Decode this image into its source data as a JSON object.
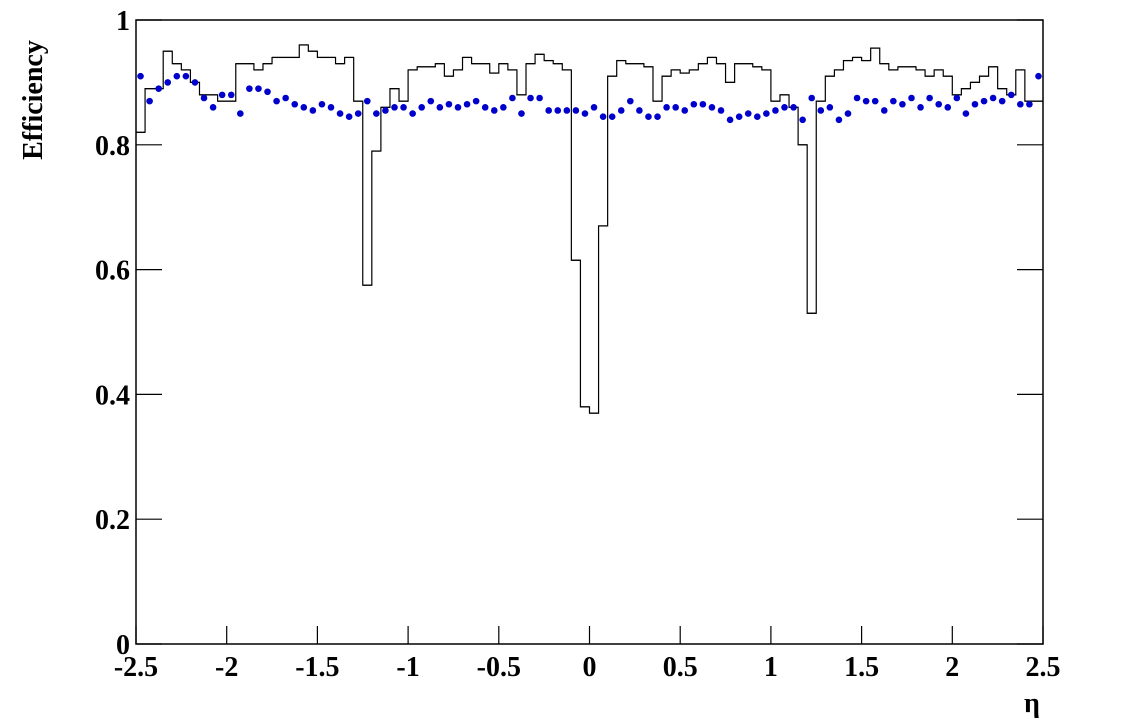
{
  "chart_data": {
    "type": "histogram",
    "xlabel": "η",
    "ylabel": "Efficiency",
    "bins": [
      -2.5,
      -2.45,
      -2.4,
      -2.35,
      -2.3,
      -2.25,
      -2.2,
      -2.15,
      -2.1,
      -2.05,
      -2,
      -1.95,
      -1.9,
      -1.85,
      -1.8,
      -1.75,
      -1.7,
      -1.65,
      -1.6,
      -1.55,
      -1.5,
      -1.45,
      -1.4,
      -1.35,
      -1.3,
      -1.25,
      -1.2,
      -1.15,
      -1.1,
      -1.05,
      -1,
      -0.95,
      -0.9,
      -0.85,
      -0.8,
      -0.75,
      -0.7,
      -0.65,
      -0.6,
      -0.55,
      -0.5,
      -0.45,
      -0.4,
      -0.35,
      -0.3,
      -0.25,
      -0.2,
      -0.15,
      -0.1,
      -0.05,
      0,
      0.05,
      0.1,
      0.15,
      0.2,
      0.25,
      0.3,
      0.35,
      0.4,
      0.45,
      0.5,
      0.55,
      0.6,
      0.65,
      0.7,
      0.75,
      0.8,
      0.85,
      0.9,
      0.95,
      1,
      1.05,
      1.1,
      1.15,
      1.2,
      1.25,
      1.3,
      1.35,
      1.4,
      1.45,
      1.5,
      1.55,
      1.6,
      1.65,
      1.7,
      1.75,
      1.8,
      1.85,
      1.9,
      1.95,
      2,
      2.05,
      2.1,
      2.15,
      2.2,
      2.25,
      2.3,
      2.35,
      2.4,
      2.45,
      2.5
    ],
    "series": [
      {
        "style": "step",
        "color": "#000000",
        "values": [
          0.82,
          0.89,
          0.89,
          0.95,
          0.93,
          0.92,
          0.9,
          0.88,
          0.88,
          0.87,
          0.87,
          0.93,
          0.93,
          0.92,
          0.93,
          0.94,
          0.94,
          0.94,
          0.96,
          0.95,
          0.94,
          0.94,
          0.93,
          0.94,
          0.87,
          0.575,
          0.79,
          0.86,
          0.89,
          0.87,
          0.92,
          0.925,
          0.925,
          0.93,
          0.91,
          0.92,
          0.94,
          0.93,
          0.93,
          0.915,
          0.93,
          0.92,
          0.88,
          0.93,
          0.945,
          0.935,
          0.93,
          0.92,
          0.615,
          0.38,
          0.37,
          0.67,
          0.91,
          0.935,
          0.93,
          0.93,
          0.925,
          0.87,
          0.91,
          0.92,
          0.915,
          0.92,
          0.93,
          0.94,
          0.93,
          0.9,
          0.93,
          0.93,
          0.925,
          0.92,
          0.87,
          0.88,
          0.86,
          0.8,
          0.53,
          0.87,
          0.91,
          0.92,
          0.935,
          0.94,
          0.935,
          0.955,
          0.93,
          0.92,
          0.925,
          0.925,
          0.92,
          0.91,
          0.92,
          0.91,
          0.88,
          0.89,
          0.9,
          0.91,
          0.925,
          0.89,
          0.88,
          0.92,
          0.87,
          0.87
        ]
      },
      {
        "style": "points",
        "color": "#0000cc",
        "values": [
          0.91,
          0.87,
          0.89,
          0.9,
          0.91,
          0.91,
          0.9,
          0.875,
          0.86,
          0.88,
          0.88,
          0.85,
          0.89,
          0.89,
          0.885,
          0.87,
          0.875,
          0.865,
          0.86,
          0.855,
          0.865,
          0.86,
          0.85,
          0.845,
          0.85,
          0.87,
          0.85,
          0.855,
          0.86,
          0.86,
          0.85,
          0.86,
          0.87,
          0.86,
          0.865,
          0.86,
          0.865,
          0.87,
          0.86,
          0.855,
          0.86,
          0.875,
          0.85,
          0.875,
          0.875,
          0.855,
          0.855,
          0.855,
          0.855,
          0.85,
          0.86,
          0.845,
          0.845,
          0.855,
          0.87,
          0.855,
          0.845,
          0.845,
          0.86,
          0.86,
          0.855,
          0.865,
          0.865,
          0.86,
          0.855,
          0.84,
          0.845,
          0.85,
          0.845,
          0.85,
          0.855,
          0.86,
          0.86,
          0.84,
          0.875,
          0.855,
          0.86,
          0.84,
          0.85,
          0.875,
          0.87,
          0.87,
          0.855,
          0.87,
          0.865,
          0.875,
          0.86,
          0.875,
          0.865,
          0.86,
          0.875,
          0.85,
          0.865,
          0.87,
          0.875,
          0.87,
          0.88,
          0.865,
          0.865,
          0.91
        ]
      }
    ],
    "xlim": [
      -2.5,
      2.5
    ],
    "xticks": [
      -2.5,
      -2,
      -1.5,
      -1,
      -0.5,
      0,
      0.5,
      1,
      1.5,
      2,
      2.5
    ],
    "ylim": [
      0,
      1
    ],
    "yticks": [
      0,
      0.2,
      0.4,
      0.6,
      0.8,
      1
    ]
  }
}
